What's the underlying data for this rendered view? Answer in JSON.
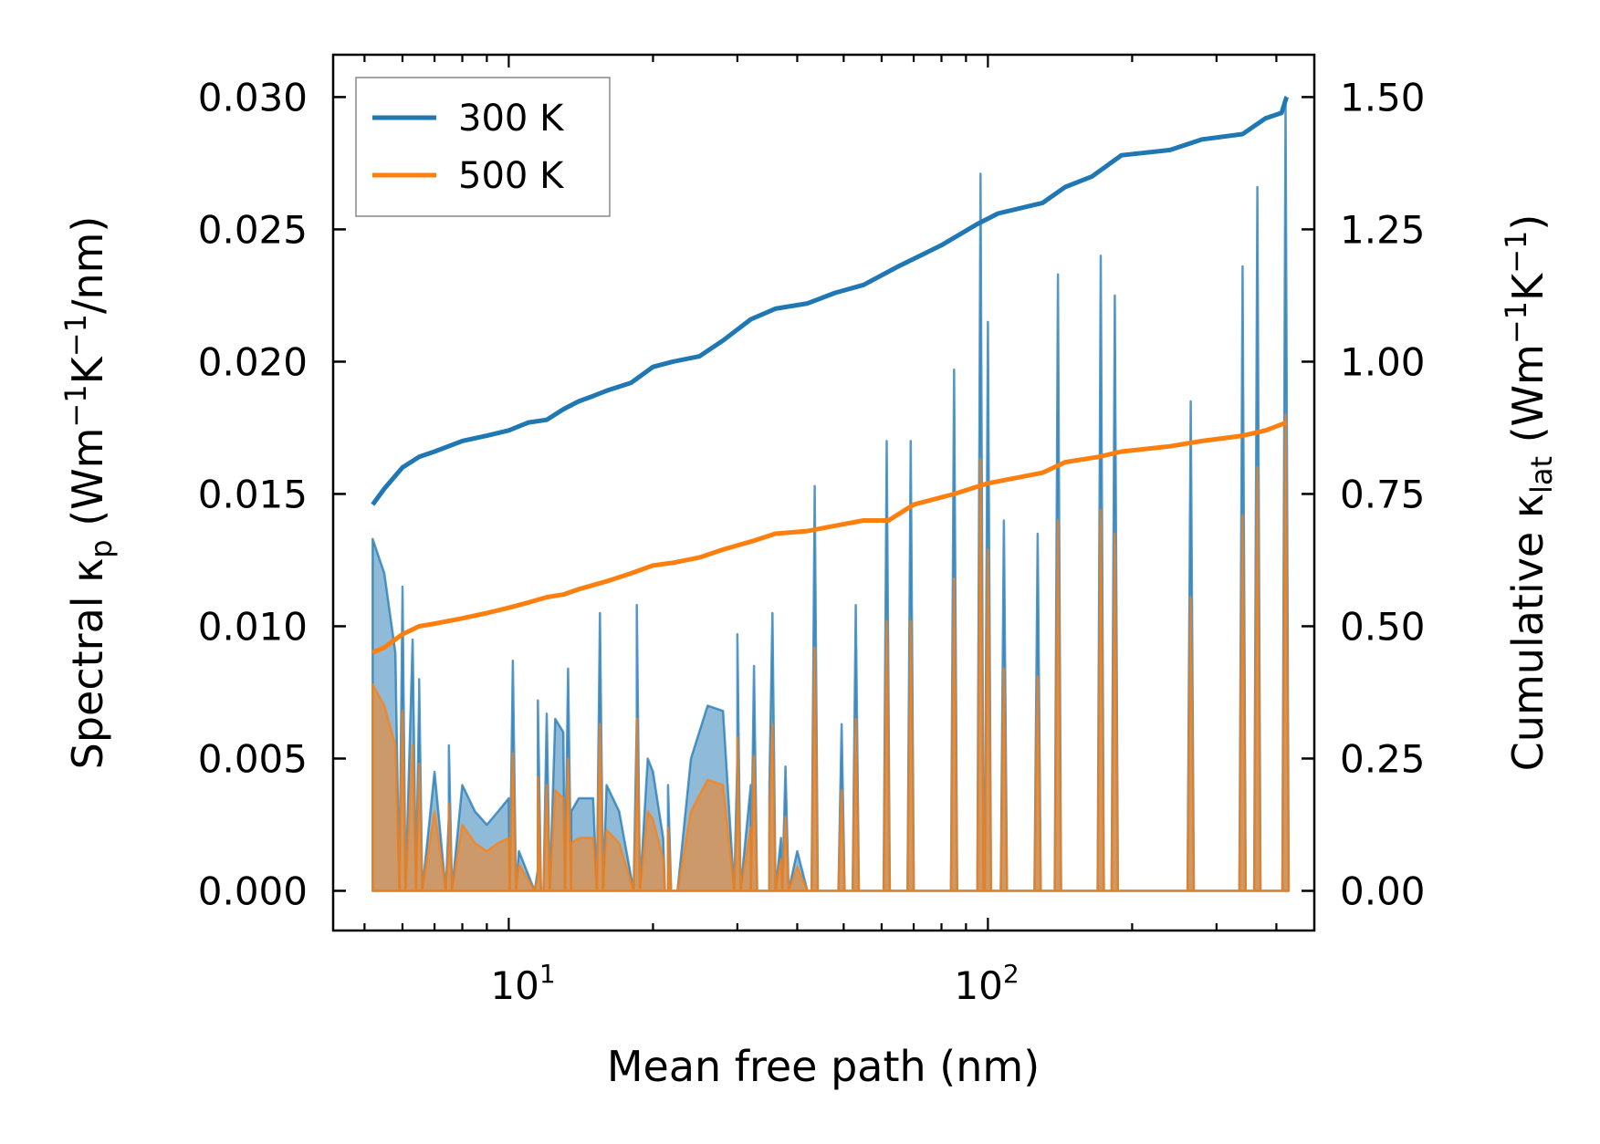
{
  "chart_data": {
    "type": "line",
    "xlabel": "Mean free path (nm)",
    "xscale": "log",
    "xlim": [
      4.3,
      480
    ],
    "x_tick_labels": [
      {
        "value": 10,
        "base": "10",
        "exp": "1"
      },
      {
        "value": 100,
        "base": "10",
        "exp": "2"
      }
    ],
    "left_axis": {
      "label_parts": {
        "pre": "Spectral κ",
        "sub": "p",
        "mid1": " (Wm",
        "sup1": "−1",
        "mid2": "K",
        "sup2": "−1",
        "post": "/nm)"
      },
      "ylim": [
        -0.0015,
        0.0316
      ],
      "ticks": [
        0.0,
        0.005,
        0.01,
        0.015,
        0.02,
        0.025,
        0.03
      ],
      "tick_labels": [
        "0.000",
        "0.005",
        "0.010",
        "0.015",
        "0.020",
        "0.025",
        "0.030"
      ]
    },
    "right_axis": {
      "label_parts": {
        "pre": "Cumulative κ",
        "sub": "lat",
        "mid1": " (Wm",
        "sup1": "−1",
        "mid2": "K",
        "sup2": "−1",
        "post": ")"
      },
      "ylim": [
        -0.075,
        1.58
      ],
      "ticks": [
        0.0,
        0.25,
        0.5,
        0.75,
        1.0,
        1.25,
        1.5
      ],
      "tick_labels": [
        "0.00",
        "0.25",
        "0.50",
        "0.75",
        "1.00",
        "1.25",
        "1.50"
      ]
    },
    "legend": {
      "position": "upper-left",
      "entries": [
        {
          "label": "300 K",
          "color": "#1f77b4"
        },
        {
          "label": "500 K",
          "color": "#ff7f0e"
        }
      ]
    },
    "series": [
      {
        "name": "300 K",
        "color": "#1f77b4",
        "cumulative": [
          [
            5.2,
            0.73
          ],
          [
            5.5,
            0.76
          ],
          [
            6.0,
            0.8
          ],
          [
            6.5,
            0.82
          ],
          [
            7.0,
            0.83
          ],
          [
            8.0,
            0.85
          ],
          [
            9.0,
            0.86
          ],
          [
            10.0,
            0.87
          ],
          [
            11.0,
            0.885
          ],
          [
            12.0,
            0.89
          ],
          [
            13.0,
            0.91
          ],
          [
            14.0,
            0.925
          ],
          [
            15.0,
            0.935
          ],
          [
            16.0,
            0.945
          ],
          [
            18.0,
            0.96
          ],
          [
            20.0,
            0.99
          ],
          [
            22.0,
            1.0
          ],
          [
            25.0,
            1.01
          ],
          [
            28.0,
            1.04
          ],
          [
            32.0,
            1.08
          ],
          [
            36.0,
            1.1
          ],
          [
            42.0,
            1.11
          ],
          [
            48.0,
            1.13
          ],
          [
            55.0,
            1.145
          ],
          [
            65.0,
            1.18
          ],
          [
            80.0,
            1.22
          ],
          [
            95.0,
            1.26
          ],
          [
            105.0,
            1.28
          ],
          [
            130.0,
            1.3
          ],
          [
            145.0,
            1.33
          ],
          [
            165.0,
            1.35
          ],
          [
            190.0,
            1.39
          ],
          [
            240.0,
            1.4
          ],
          [
            280.0,
            1.42
          ],
          [
            340.0,
            1.43
          ],
          [
            380.0,
            1.46
          ],
          [
            410.0,
            1.47
          ],
          [
            420.0,
            1.5
          ]
        ],
        "spectral_baseline": [
          [
            5.2,
            0.0133
          ],
          [
            5.5,
            0.012
          ],
          [
            5.8,
            0.009
          ],
          [
            6.0,
            0.0113
          ],
          [
            6.3,
            0.0095
          ],
          [
            6.5,
            0.0075
          ],
          [
            7.0,
            0.0045
          ],
          [
            7.5,
            0.0028
          ],
          [
            8.0,
            0.004
          ],
          [
            8.5,
            0.003
          ],
          [
            9.0,
            0.0025
          ],
          [
            9.5,
            0.003
          ],
          [
            10.0,
            0.0035
          ],
          [
            10.5,
            0.0015
          ],
          [
            11.5,
            0.0008
          ],
          [
            12.5,
            0.0065
          ],
          [
            13.0,
            0.006
          ],
          [
            13.5,
            0.003
          ],
          [
            14.0,
            0.0035
          ],
          [
            15.0,
            0.0035
          ],
          [
            16.0,
            0.004
          ],
          [
            17.0,
            0.003
          ],
          [
            18.5,
            0.0065
          ],
          [
            19.5,
            0.005
          ],
          [
            20.0,
            0.0045
          ],
          [
            21.0,
            0.002
          ],
          [
            21.5,
            0.0
          ],
          [
            22.5,
            0.0
          ],
          [
            24.0,
            0.005
          ],
          [
            26.0,
            0.007
          ],
          [
            28.0,
            0.0068
          ],
          [
            30.0,
            0.005
          ],
          [
            32.0,
            0.004
          ],
          [
            35.0,
            0.004
          ],
          [
            37.0,
            0.002
          ],
          [
            40.0,
            0.0015
          ],
          [
            42.0,
            0.0
          ],
          [
            60.0,
            0.0
          ]
        ],
        "spikes": [
          [
            6.0,
            0.0115
          ],
          [
            6.5,
            0.008
          ],
          [
            7.5,
            0.0055
          ],
          [
            10.2,
            0.0087
          ],
          [
            11.5,
            0.0072
          ],
          [
            12.0,
            0.0067
          ],
          [
            13.3,
            0.0084
          ],
          [
            15.5,
            0.0105
          ],
          [
            18.5,
            0.0108
          ],
          [
            21.5,
            0.004
          ],
          [
            30.0,
            0.0097
          ],
          [
            32.5,
            0.0085
          ],
          [
            35.5,
            0.0105
          ],
          [
            37.8,
            0.0047
          ],
          [
            43.5,
            0.0153
          ],
          [
            49.5,
            0.0063
          ],
          [
            53.0,
            0.0108
          ],
          [
            61.5,
            0.017
          ],
          [
            69.0,
            0.017
          ],
          [
            85.0,
            0.0197
          ],
          [
            96.5,
            0.0271
          ],
          [
            100.0,
            0.0215
          ],
          [
            108.0,
            0.014
          ],
          [
            127.0,
            0.0135
          ],
          [
            140.0,
            0.0233
          ],
          [
            172.0,
            0.024
          ],
          [
            184.0,
            0.0225
          ],
          [
            265.0,
            0.0185
          ],
          [
            340.0,
            0.0236
          ],
          [
            365.0,
            0.0266
          ],
          [
            418.0,
            0.03
          ]
        ]
      },
      {
        "name": "500 K",
        "color": "#ff7f0e",
        "cumulative": [
          [
            5.2,
            0.45
          ],
          [
            5.5,
            0.46
          ],
          [
            6.0,
            0.485
          ],
          [
            6.5,
            0.5
          ],
          [
            7.0,
            0.505
          ],
          [
            8.0,
            0.515
          ],
          [
            9.0,
            0.525
          ],
          [
            10.0,
            0.535
          ],
          [
            11.0,
            0.545
          ],
          [
            12.0,
            0.555
          ],
          [
            13.0,
            0.56
          ],
          [
            14.0,
            0.57
          ],
          [
            16.0,
            0.585
          ],
          [
            18.0,
            0.6
          ],
          [
            20.0,
            0.615
          ],
          [
            22.0,
            0.62
          ],
          [
            25.0,
            0.63
          ],
          [
            28.0,
            0.645
          ],
          [
            32.0,
            0.66
          ],
          [
            36.0,
            0.675
          ],
          [
            42.0,
            0.68
          ],
          [
            48.0,
            0.69
          ],
          [
            55.0,
            0.7
          ],
          [
            62.0,
            0.7
          ],
          [
            70.0,
            0.73
          ],
          [
            85.0,
            0.75
          ],
          [
            100.0,
            0.77
          ],
          [
            130.0,
            0.79
          ],
          [
            145.0,
            0.81
          ],
          [
            170.0,
            0.82
          ],
          [
            190.0,
            0.83
          ],
          [
            240.0,
            0.84
          ],
          [
            280.0,
            0.85
          ],
          [
            340.0,
            0.86
          ],
          [
            380.0,
            0.87
          ],
          [
            420.0,
            0.885
          ]
        ],
        "spectral_baseline": [
          [
            5.2,
            0.0078
          ],
          [
            5.5,
            0.007
          ],
          [
            5.8,
            0.0055
          ],
          [
            6.0,
            0.0068
          ],
          [
            6.3,
            0.0055
          ],
          [
            6.5,
            0.0045
          ],
          [
            7.0,
            0.003
          ],
          [
            7.5,
            0.0018
          ],
          [
            8.0,
            0.0025
          ],
          [
            8.5,
            0.0018
          ],
          [
            9.0,
            0.0015
          ],
          [
            9.5,
            0.0018
          ],
          [
            10.0,
            0.002
          ],
          [
            10.5,
            0.001
          ],
          [
            11.5,
            0.0005
          ],
          [
            12.5,
            0.0038
          ],
          [
            13.0,
            0.0035
          ],
          [
            13.5,
            0.0018
          ],
          [
            14.0,
            0.002
          ],
          [
            15.0,
            0.002
          ],
          [
            16.0,
            0.0023
          ],
          [
            17.0,
            0.0018
          ],
          [
            18.5,
            0.0038
          ],
          [
            19.5,
            0.003
          ],
          [
            20.0,
            0.0027
          ],
          [
            21.0,
            0.0012
          ],
          [
            21.5,
            0.0
          ],
          [
            22.5,
            0.0
          ],
          [
            24.0,
            0.003
          ],
          [
            26.0,
            0.0042
          ],
          [
            28.0,
            0.004
          ],
          [
            30.0,
            0.003
          ],
          [
            32.0,
            0.0024
          ],
          [
            35.0,
            0.0024
          ],
          [
            37.0,
            0.0012
          ],
          [
            40.0,
            0.0009
          ],
          [
            42.0,
            0.0
          ],
          [
            60.0,
            0.0
          ]
        ],
        "spikes": [
          [
            6.0,
            0.0068
          ],
          [
            6.5,
            0.0048
          ],
          [
            7.5,
            0.0033
          ],
          [
            10.2,
            0.0052
          ],
          [
            11.5,
            0.0043
          ],
          [
            12.0,
            0.004
          ],
          [
            13.3,
            0.005
          ],
          [
            15.5,
            0.0063
          ],
          [
            18.5,
            0.0065
          ],
          [
            21.5,
            0.0024
          ],
          [
            30.0,
            0.0058
          ],
          [
            32.5,
            0.0051
          ],
          [
            35.5,
            0.0063
          ],
          [
            37.8,
            0.0028
          ],
          [
            43.5,
            0.0092
          ],
          [
            49.5,
            0.0038
          ],
          [
            53.0,
            0.0065
          ],
          [
            61.5,
            0.0102
          ],
          [
            69.0,
            0.0102
          ],
          [
            85.0,
            0.0118
          ],
          [
            96.5,
            0.0163
          ],
          [
            100.0,
            0.0129
          ],
          [
            108.0,
            0.0084
          ],
          [
            127.0,
            0.0081
          ],
          [
            140.0,
            0.014
          ],
          [
            172.0,
            0.0144
          ],
          [
            184.0,
            0.0135
          ],
          [
            265.0,
            0.0111
          ],
          [
            340.0,
            0.0142
          ],
          [
            365.0,
            0.016
          ],
          [
            418.0,
            0.018
          ]
        ]
      }
    ]
  }
}
